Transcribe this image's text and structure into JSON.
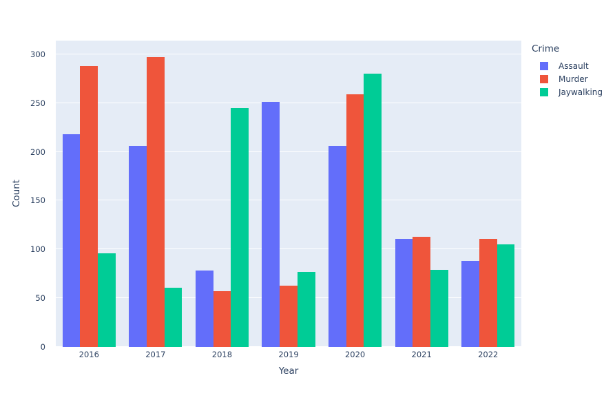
{
  "chart_data": {
    "type": "bar",
    "mode": "grouped",
    "title": "",
    "xlabel": "Year",
    "ylabel": "Count",
    "legend_title": "Crime",
    "legend_position": "top-right",
    "categories": [
      "2016",
      "2017",
      "2018",
      "2019",
      "2020",
      "2021",
      "2022"
    ],
    "series": [
      {
        "name": "Assault",
        "color": "#636EFA",
        "values": [
          218,
          206,
          78,
          251,
          206,
          111,
          88
        ]
      },
      {
        "name": "Murder",
        "color": "#EF553B",
        "values": [
          288,
          297,
          57,
          63,
          259,
          113,
          111
        ]
      },
      {
        "name": "Jaywalking",
        "color": "#00CC96",
        "values": [
          96,
          61,
          245,
          77,
          280,
          79,
          105
        ]
      }
    ],
    "ylim": [
      0,
      314
    ],
    "yticks": [
      0,
      50,
      100,
      150,
      200,
      250,
      300
    ],
    "grid": true,
    "plot_bgcolor": "#E5ECF6",
    "paper_bgcolor": "#FFFFFF",
    "gridcolor": "#FFFFFF",
    "text_color": "#2a3f5f"
  }
}
